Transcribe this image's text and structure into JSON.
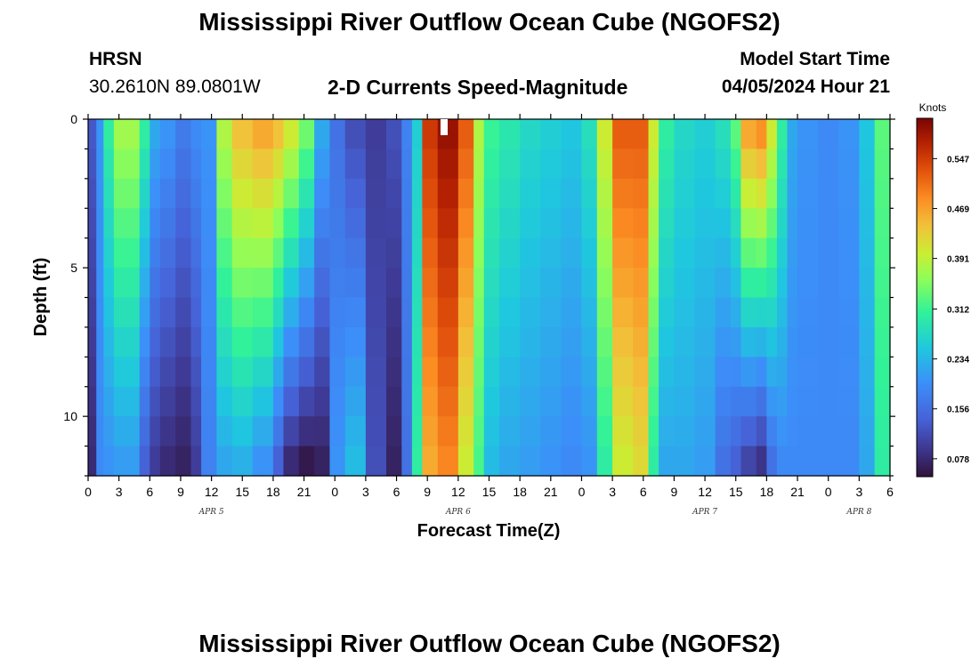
{
  "header": {
    "title": "Mississippi River Outflow Ocean Cube (NGOFS2)",
    "station_id": "HRSN",
    "station_coords": "30.2610N  89.0801W",
    "subtitle": "2-D Currents Speed-Magnitude",
    "model_start_label": "Model Start Time",
    "model_start_value": "04/05/2024 Hour 21"
  },
  "footer": {
    "title": "Mississippi River Outflow Ocean Cube (NGOFS2)"
  },
  "chart_data": {
    "type": "heatmap",
    "title": "2-D Currents Speed-Magnitude",
    "xlabel": "Forecast Time(Z)",
    "ylabel": "Depth (ft)",
    "x_range_hours": [
      0,
      78
    ],
    "x_tick_labels": [
      "0",
      "3",
      "6",
      "9",
      "12",
      "15",
      "18",
      "21",
      "0",
      "3",
      "6",
      "9",
      "12",
      "15",
      "18",
      "21",
      "0",
      "3",
      "6",
      "9",
      "12",
      "15",
      "18",
      "21",
      "0",
      "3",
      "6"
    ],
    "date_labels": [
      {
        "text": "APR 5",
        "hour": 12
      },
      {
        "text": "APR 6",
        "hour": 36
      },
      {
        "text": "APR 7",
        "hour": 60
      },
      {
        "text": "APR 8",
        "hour": 75
      }
    ],
    "y_range_ft": [
      0,
      12
    ],
    "y_tick_labels": [
      "0",
      "5",
      "10"
    ],
    "y_tick_values": [
      0,
      5,
      10
    ],
    "depth_levels": 12,
    "colorbar": {
      "unit_label": "Knots",
      "range": [
        0.05,
        0.61
      ],
      "ticks": [
        "0.078",
        "0.156",
        "0.234",
        "0.312",
        "0.391",
        "0.469",
        "0.547"
      ],
      "tick_values": [
        0.078,
        0.156,
        0.234,
        0.312,
        0.391,
        0.469,
        0.547
      ]
    },
    "columns": [
      {
        "t0": 0.0,
        "t1": 0.8,
        "top": 0.13,
        "bottom": 0.08
      },
      {
        "t0": 0.8,
        "t1": 1.5,
        "top": 0.2,
        "bottom": 0.19
      },
      {
        "t0": 1.5,
        "t1": 2.5,
        "top": 0.3,
        "bottom": 0.2
      },
      {
        "t0": 2.5,
        "t1": 5.0,
        "top": 0.37,
        "bottom": 0.21
      },
      {
        "t0": 5.0,
        "t1": 6.0,
        "top": 0.3,
        "bottom": 0.14
      },
      {
        "t0": 6.0,
        "t1": 7.0,
        "top": 0.22,
        "bottom": 0.1
      },
      {
        "t0": 7.0,
        "t1": 8.5,
        "top": 0.2,
        "bottom": 0.08
      },
      {
        "t0": 8.5,
        "t1": 10.0,
        "top": 0.17,
        "bottom": 0.07
      },
      {
        "t0": 10.0,
        "t1": 11.0,
        "top": 0.19,
        "bottom": 0.1
      },
      {
        "t0": 11.0,
        "t1": 12.5,
        "top": 0.2,
        "bottom": 0.18
      },
      {
        "t0": 12.5,
        "t1": 14.0,
        "top": 0.38,
        "bottom": 0.22
      },
      {
        "t0": 14.0,
        "t1": 16.0,
        "top": 0.44,
        "bottom": 0.23
      },
      {
        "t0": 16.0,
        "t1": 18.0,
        "top": 0.46,
        "bottom": 0.2
      },
      {
        "t0": 18.0,
        "t1": 19.0,
        "top": 0.44,
        "bottom": 0.14
      },
      {
        "t0": 19.0,
        "t1": 20.5,
        "top": 0.4,
        "bottom": 0.08
      },
      {
        "t0": 20.5,
        "t1": 22.0,
        "top": 0.34,
        "bottom": 0.06
      },
      {
        "t0": 22.0,
        "t1": 23.5,
        "top": 0.22,
        "bottom": 0.07
      },
      {
        "t0": 23.5,
        "t1": 25.0,
        "top": 0.16,
        "bottom": 0.2
      },
      {
        "t0": 25.0,
        "t1": 27.0,
        "top": 0.12,
        "bottom": 0.24
      },
      {
        "t0": 27.0,
        "t1": 29.0,
        "top": 0.1,
        "bottom": 0.12
      },
      {
        "t0": 29.0,
        "t1": 30.5,
        "top": 0.12,
        "bottom": 0.07
      },
      {
        "t0": 30.5,
        "t1": 31.5,
        "top": 0.18,
        "bottom": 0.16
      },
      {
        "t0": 31.5,
        "t1": 32.5,
        "top": 0.26,
        "bottom": 0.3
      },
      {
        "t0": 32.5,
        "t1": 34.0,
        "top": 0.55,
        "bottom": 0.46
      },
      {
        "t0": 34.0,
        "t1": 36.0,
        "top": 0.59,
        "bottom": 0.49
      },
      {
        "t0": 36.0,
        "t1": 37.5,
        "top": 0.52,
        "bottom": 0.4
      },
      {
        "t0": 37.5,
        "t1": 38.5,
        "top": 0.38,
        "bottom": 0.32
      },
      {
        "t0": 38.5,
        "t1": 40.0,
        "top": 0.31,
        "bottom": 0.24
      },
      {
        "t0": 40.0,
        "t1": 42.0,
        "top": 0.29,
        "bottom": 0.22
      },
      {
        "t0": 42.0,
        "t1": 44.0,
        "top": 0.27,
        "bottom": 0.21
      },
      {
        "t0": 44.0,
        "t1": 46.0,
        "top": 0.26,
        "bottom": 0.2
      },
      {
        "t0": 46.0,
        "t1": 48.0,
        "top": 0.25,
        "bottom": 0.19
      },
      {
        "t0": 48.0,
        "t1": 49.5,
        "top": 0.28,
        "bottom": 0.2
      },
      {
        "t0": 49.5,
        "t1": 51.0,
        "top": 0.4,
        "bottom": 0.3
      },
      {
        "t0": 51.0,
        "t1": 53.0,
        "top": 0.52,
        "bottom": 0.4
      },
      {
        "t0": 53.0,
        "t1": 54.5,
        "top": 0.52,
        "bottom": 0.42
      },
      {
        "t0": 54.5,
        "t1": 55.5,
        "top": 0.4,
        "bottom": 0.3
      },
      {
        "t0": 55.5,
        "t1": 57.0,
        "top": 0.3,
        "bottom": 0.22
      },
      {
        "t0": 57.0,
        "t1": 59.0,
        "top": 0.27,
        "bottom": 0.22
      },
      {
        "t0": 59.0,
        "t1": 61.0,
        "top": 0.26,
        "bottom": 0.21
      },
      {
        "t0": 61.0,
        "t1": 62.5,
        "top": 0.28,
        "bottom": 0.16
      },
      {
        "t0": 62.5,
        "t1": 63.5,
        "top": 0.33,
        "bottom": 0.14
      },
      {
        "t0": 63.5,
        "t1": 65.0,
        "top": 0.46,
        "bottom": 0.11
      },
      {
        "t0": 65.0,
        "t1": 66.0,
        "top": 0.48,
        "bottom": 0.09
      },
      {
        "t0": 66.0,
        "t1": 67.0,
        "top": 0.4,
        "bottom": 0.16
      },
      {
        "t0": 67.0,
        "t1": 68.0,
        "top": 0.3,
        "bottom": 0.19
      },
      {
        "t0": 68.0,
        "t1": 69.0,
        "top": 0.22,
        "bottom": 0.19
      },
      {
        "t0": 69.0,
        "t1": 71.0,
        "top": 0.2,
        "bottom": 0.19
      },
      {
        "t0": 71.0,
        "t1": 73.0,
        "top": 0.19,
        "bottom": 0.19
      },
      {
        "t0": 73.0,
        "t1": 75.0,
        "top": 0.2,
        "bottom": 0.19
      },
      {
        "t0": 75.0,
        "t1": 76.5,
        "top": 0.25,
        "bottom": 0.22
      },
      {
        "t0": 76.5,
        "t1": 78.0,
        "top": 0.33,
        "bottom": 0.3
      }
    ]
  }
}
